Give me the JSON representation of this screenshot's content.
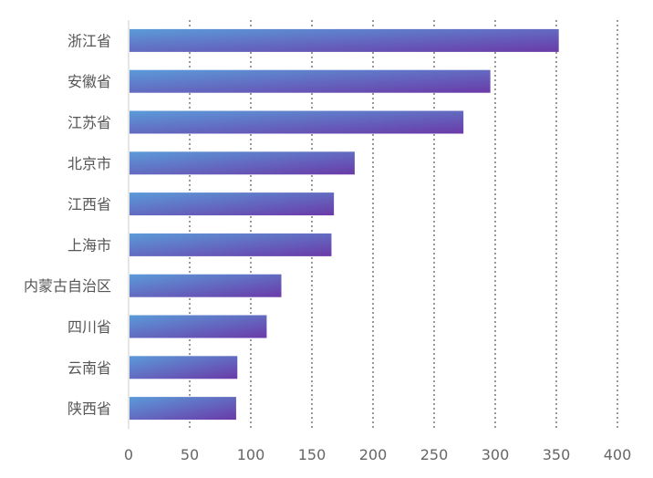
{
  "chart_data": {
    "type": "bar",
    "orientation": "horizontal",
    "categories": [
      "浙江省",
      "安徽省",
      "江苏省",
      "北京市",
      "江西省",
      "上海市",
      "内蒙古自治区",
      "四川省",
      "云南省",
      "陕西省"
    ],
    "values": [
      352,
      296,
      274,
      185,
      168,
      166,
      125,
      113,
      89,
      88
    ],
    "xlim": [
      0,
      400
    ],
    "xticks": [
      "0",
      "50",
      "100",
      "150",
      "200",
      "250",
      "300",
      "350",
      "400"
    ],
    "grid": "vertical-dotted",
    "bar_gradient": [
      "#5b9bd9",
      "#6a3aa8"
    ],
    "title": "",
    "xlabel": "",
    "ylabel": ""
  }
}
